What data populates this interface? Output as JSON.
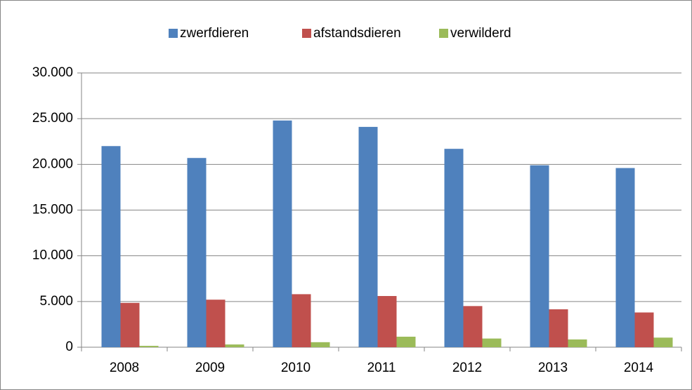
{
  "chart_data": {
    "type": "bar",
    "categories": [
      "2008",
      "2009",
      "2010",
      "2011",
      "2012",
      "2013",
      "2014"
    ],
    "series": [
      {
        "name": "zwerfdieren",
        "color": "#4f81bd",
        "values": [
          22000,
          20700,
          24800,
          24100,
          21700,
          19900,
          19600
        ]
      },
      {
        "name": "afstandsdieren",
        "color": "#c0504d",
        "values": [
          4850,
          5200,
          5800,
          5600,
          4500,
          4150,
          3800
        ]
      },
      {
        "name": "verwilderd",
        "color": "#9bbb59",
        "values": [
          150,
          300,
          550,
          1150,
          950,
          850,
          1050
        ]
      }
    ],
    "ylim": [
      0,
      30000
    ],
    "yticks": [
      0,
      {
        "value": 5000,
        "label": "5.000"
      },
      {
        "value": 10000,
        "label": "10.000"
      },
      {
        "value": 15000,
        "label": "15.000"
      },
      {
        "value": 20000,
        "label": "20.000"
      },
      {
        "value": 25000,
        "label": "25.000"
      },
      {
        "value": 30000,
        "label": "30.000"
      }
    ],
    "grid": true,
    "legend": "top"
  }
}
